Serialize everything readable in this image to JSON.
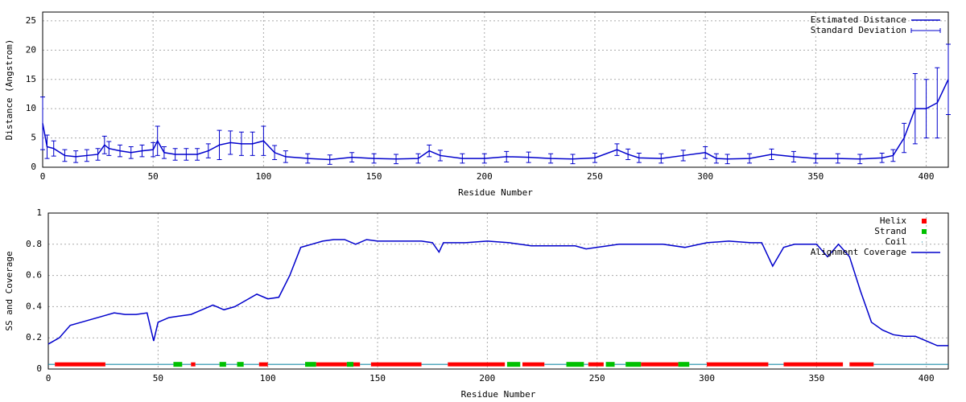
{
  "chart_data": [
    {
      "type": "line",
      "xlabel": "Residue Number",
      "ylabel": "Distance (Angstrom)",
      "xlim": [
        0,
        410
      ],
      "ylim": [
        0,
        26.5
      ],
      "xticks": [
        0,
        50,
        100,
        150,
        200,
        250,
        300,
        350,
        400
      ],
      "yticks": [
        0,
        5,
        10,
        15,
        20,
        25
      ],
      "grid": true,
      "error_label": "Standard Deviation",
      "series": [
        {
          "name": "Estimated Distance",
          "color": "#0000cc",
          "x": [
            0,
            2,
            5,
            10,
            15,
            20,
            25,
            28,
            30,
            35,
            40,
            45,
            50,
            52,
            55,
            60,
            65,
            70,
            75,
            80,
            85,
            90,
            95,
            100,
            105,
            110,
            120,
            130,
            140,
            150,
            160,
            170,
            175,
            180,
            190,
            200,
            210,
            220,
            230,
            240,
            250,
            260,
            265,
            270,
            280,
            290,
            300,
            305,
            310,
            320,
            330,
            340,
            350,
            360,
            370,
            380,
            385,
            390,
            395,
            400,
            405,
            410
          ],
          "values": [
            7.5,
            3.5,
            3.2,
            2,
            1.8,
            2,
            2.2,
            3.8,
            3.2,
            2.8,
            2.5,
            2.8,
            3,
            4.5,
            2.5,
            2.2,
            2.2,
            2.2,
            2.8,
            3.8,
            4.2,
            4,
            4,
            4.5,
            2.5,
            1.8,
            1.5,
            1.3,
            1.7,
            1.5,
            1.4,
            1.5,
            2.8,
            2,
            1.5,
            1.5,
            1.8,
            1.7,
            1.5,
            1.4,
            1.6,
            3,
            2.2,
            1.6,
            1.5,
            2,
            2.5,
            1.5,
            1.4,
            1.5,
            2.2,
            1.8,
            1.5,
            1.5,
            1.4,
            1.6,
            2,
            5,
            10,
            10,
            11,
            15
          ],
          "errors": [
            4.5,
            2,
            1.3,
            1,
            1,
            1,
            1,
            1.5,
            1.2,
            1,
            1,
            1,
            1.2,
            2.5,
            1,
            1,
            1,
            1,
            1.2,
            2.5,
            2,
            2,
            2,
            2.5,
            1.2,
            1,
            0.8,
            0.8,
            0.8,
            0.8,
            0.8,
            0.8,
            1,
            0.9,
            0.8,
            0.8,
            0.9,
            0.9,
            0.8,
            0.8,
            0.8,
            1,
            0.9,
            0.8,
            0.8,
            0.9,
            1,
            0.8,
            0.8,
            0.8,
            0.9,
            0.9,
            0.8,
            0.8,
            0.8,
            0.8,
            1,
            2.5,
            6,
            5,
            6,
            6
          ]
        }
      ]
    },
    {
      "type": "line",
      "xlabel": "Residue Number",
      "ylabel": "SS and Coverage",
      "xlim": [
        0,
        410
      ],
      "ylim": [
        0,
        1
      ],
      "xticks": [
        0,
        50,
        100,
        150,
        200,
        250,
        300,
        350,
        400
      ],
      "yticks": [
        0,
        0.2,
        0.4,
        0.6,
        0.8,
        1
      ],
      "grid": true,
      "ss_level": 0.03,
      "secondary_structure": [
        {
          "name": "Helix",
          "color": "#ff0000",
          "ranges": [
            [
              3,
              26
            ],
            [
              65,
              67
            ],
            [
              96,
              100
            ],
            [
              122,
              136
            ],
            [
              139,
              142
            ],
            [
              147,
              170
            ],
            [
              182,
              208
            ],
            [
              216,
              226
            ],
            [
              246,
              253
            ],
            [
              270,
              287
            ],
            [
              300,
              328
            ],
            [
              335,
              362
            ],
            [
              365,
              376
            ]
          ]
        },
        {
          "name": "Strand",
          "color": "#00c000",
          "ranges": [
            [
              57,
              61
            ],
            [
              78,
              81
            ],
            [
              86,
              89
            ],
            [
              117,
              122
            ],
            [
              136,
              139
            ],
            [
              209,
              215
            ],
            [
              236,
              244
            ],
            [
              254,
              258
            ],
            [
              263,
              270
            ],
            [
              287,
              292
            ]
          ]
        },
        {
          "name": "Coil",
          "color": "#0080a0",
          "ranges": [
            [
              0,
              3
            ],
            [
              26,
              57
            ],
            [
              61,
              65
            ],
            [
              67,
              78
            ],
            [
              81,
              86
            ],
            [
              89,
              96
            ],
            [
              100,
              117
            ],
            [
              142,
              147
            ],
            [
              170,
              182
            ],
            [
              226,
              236
            ],
            [
              244,
              246
            ],
            [
              258,
              263
            ],
            [
              292,
              300
            ],
            [
              328,
              335
            ],
            [
              376,
              410
            ]
          ]
        }
      ],
      "series": [
        {
          "name": "Alignment Coverage",
          "color": "#0000cc",
          "x": [
            0,
            5,
            10,
            15,
            20,
            25,
            30,
            35,
            40,
            45,
            48,
            50,
            55,
            60,
            65,
            70,
            75,
            80,
            85,
            90,
            95,
            100,
            105,
            110,
            115,
            120,
            125,
            130,
            135,
            140,
            145,
            150,
            160,
            170,
            175,
            178,
            180,
            190,
            200,
            210,
            220,
            230,
            240,
            245,
            250,
            260,
            270,
            280,
            290,
            300,
            310,
            320,
            325,
            330,
            335,
            340,
            350,
            355,
            360,
            365,
            370,
            375,
            380,
            385,
            390,
            395,
            400,
            405,
            410
          ],
          "values": [
            0.16,
            0.2,
            0.28,
            0.3,
            0.32,
            0.34,
            0.36,
            0.35,
            0.35,
            0.36,
            0.18,
            0.3,
            0.33,
            0.34,
            0.35,
            0.38,
            0.41,
            0.38,
            0.4,
            0.44,
            0.48,
            0.45,
            0.46,
            0.6,
            0.78,
            0.8,
            0.82,
            0.83,
            0.83,
            0.8,
            0.83,
            0.82,
            0.82,
            0.82,
            0.81,
            0.75,
            0.81,
            0.81,
            0.82,
            0.81,
            0.79,
            0.79,
            0.79,
            0.77,
            0.78,
            0.8,
            0.8,
            0.8,
            0.78,
            0.81,
            0.82,
            0.81,
            0.81,
            0.66,
            0.78,
            0.8,
            0.8,
            0.72,
            0.8,
            0.72,
            0.5,
            0.3,
            0.25,
            0.22,
            0.21,
            0.21,
            0.18,
            0.15,
            0.15
          ]
        }
      ]
    }
  ]
}
